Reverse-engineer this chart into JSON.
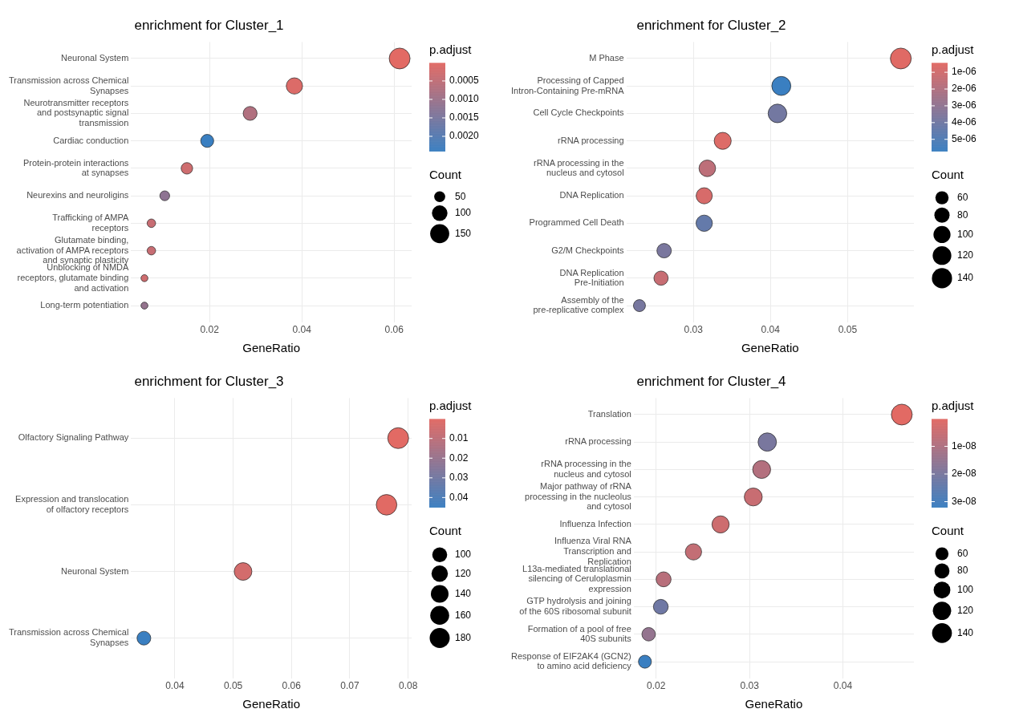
{
  "chart_data": [
    {
      "type": "bubble",
      "orientation": "horizontal",
      "title": "enrichment for Cluster_1",
      "xlabel": "GeneRatio",
      "grid": true,
      "xlim": [
        0.003,
        0.0638
      ],
      "xticks": [
        0.02,
        0.04,
        0.06
      ],
      "categories": [
        "Neuronal System",
        "Transmission across Chemical Synapses",
        "Neurotransmitter receptors and postsynaptic signal transmission",
        "Cardiac conduction",
        "Protein-protein interactions at synapses",
        "Neurexins and neuroligins",
        "Trafficking of AMPA receptors",
        "Glutamate binding, activation of AMPA receptors and synaptic plasticity",
        "Unblocking of NMDA receptors, glutamate binding and activation",
        "Long-term potentiation"
      ],
      "values": [
        0.0612,
        0.0384,
        0.0288,
        0.0195,
        0.0151,
        0.0103,
        0.0074,
        0.0074,
        0.0059,
        0.0059
      ],
      "sizes": [
        180,
        110,
        80,
        70,
        55,
        40,
        30,
        30,
        20,
        20
      ],
      "cvalues": [
        1e-05,
        0.0001,
        0.0007,
        0.0024,
        0.0003,
        0.0012,
        0.0004,
        0.0004,
        0.0003,
        0.0011
      ],
      "clabel": "p.adjust",
      "clim": [
        1e-05,
        0.0024
      ],
      "cticks": [
        0.0005,
        {
          "value": 0.001,
          "label": "0.0010"
        },
        0.0015,
        {
          "value": 0.002,
          "label": "0.0020"
        }
      ],
      "legend_title": "Count",
      "size_legend": [
        50,
        100,
        150
      ]
    },
    {
      "type": "bubble",
      "orientation": "horizontal",
      "title": "enrichment for Cluster_2",
      "xlabel": "GeneRatio",
      "grid": true,
      "xlim": [
        0.0213,
        0.0586
      ],
      "xticks": [
        0.03,
        0.04,
        0.05
      ],
      "categories": [
        "M Phase",
        "Processing of Capped Intron-Containing Pre-mRNA",
        "Cell Cycle Checkpoints",
        "rRNA processing",
        "rRNA processing in the nucleus and cytosol",
        "DNA Replication",
        "Programmed Cell Death",
        "G2/M Checkpoints",
        "DNA Replication Pre-Initiation",
        "Assembly of the pre-replicative complex"
      ],
      "values": [
        0.0569,
        0.0414,
        0.0409,
        0.0338,
        0.0318,
        0.0314,
        0.0314,
        0.0262,
        0.0258,
        0.023
      ],
      "sizes": [
        150,
        125,
        120,
        100,
        95,
        90,
        92,
        72,
        70,
        50
      ],
      "cvalues": [
        5e-07,
        5.7e-06,
        3.9e-06,
        6e-07,
        1.6e-06,
        8e-07,
        4.4e-06,
        3.7e-06,
        1.3e-06,
        3.8e-06
      ],
      "clabel": "p.adjust",
      "clim": [
        4.4e-07,
        5.7e-06
      ],
      "cticks": [
        {
          "value": 1e-06,
          "label": "1e-06"
        },
        {
          "value": 2e-06,
          "label": "2e-06"
        },
        {
          "value": 3e-06,
          "label": "3e-06"
        },
        {
          "value": 4e-06,
          "label": "4e-06"
        },
        {
          "value": 5e-06,
          "label": "5e-06"
        }
      ],
      "legend_title": "Count",
      "size_legend": [
        60,
        80,
        100,
        120,
        140
      ]
    },
    {
      "type": "bubble",
      "orientation": "horizontal",
      "title": "enrichment for Cluster_3",
      "xlabel": "GeneRatio",
      "grid": true,
      "xlim": [
        0.0325,
        0.0806
      ],
      "xticks": [
        0.04,
        0.05,
        0.06,
        0.07,
        0.08
      ],
      "categories": [
        "Olfactory Signaling Pathway",
        "Expression and translocation of olfactory receptors",
        "Neuronal System",
        "Transmission across Chemical Synapses"
      ],
      "values": [
        0.0783,
        0.0763,
        0.0517,
        0.0347
      ],
      "sizes": [
        195,
        190,
        140,
        85
      ],
      "cvalues": [
        0.0001,
        0.0003,
        0.004,
        0.0449
      ],
      "clabel": "p.adjust",
      "clim": [
        0.0001,
        0.0449
      ],
      "cticks": [
        0.01,
        0.02,
        0.03,
        0.04
      ],
      "legend_title": "Count",
      "size_legend": [
        100,
        120,
        140,
        160,
        180
      ]
    },
    {
      "type": "bubble",
      "orientation": "horizontal",
      "title": "enrichment for Cluster_4",
      "xlabel": "GeneRatio",
      "grid": true,
      "xlim": [
        0.0176,
        0.0476
      ],
      "xticks": [
        0.02,
        0.03,
        0.04
      ],
      "categories": [
        "Translation",
        "rRNA processing",
        "rRNA processing in the nucleus and cytosol",
        "Major pathway of rRNA processing in the nucleolus and cytosol",
        "Influenza Infection",
        "Influenza Viral RNA Transcription and Replication",
        "L13a-mediated translational silencing of Ceruloplasmin expression",
        "GTP hydrolysis and joining of the 60S ribosomal subunit",
        "Formation of a pool of free 40S subunits",
        "Response of EIF2AK4 (GCN2) to amino acid deficiency"
      ],
      "values": [
        0.0463,
        0.0319,
        0.0313,
        0.0304,
        0.0269,
        0.024,
        0.0208,
        0.0205,
        0.0192,
        0.0188
      ],
      "sizes": [
        155,
        120,
        115,
        115,
        105,
        95,
        80,
        78,
        65,
        60
      ],
      "cvalues": [
        1e-10,
        2e-08,
        9e-09,
        5e-09,
        4e-09,
        6e-09,
        8e-09,
        2.2e-08,
        1.5e-08,
        3.2e-08
      ],
      "clabel": "p.adjust",
      "clim": [
        1e-10,
        3.2e-08
      ],
      "cticks": [
        {
          "value": 1e-08,
          "label": "1e-08"
        },
        {
          "value": 2e-08,
          "label": "2e-08"
        },
        {
          "value": 3e-08,
          "label": "3e-08"
        }
      ],
      "legend_title": "Count",
      "size_legend": [
        60,
        80,
        100,
        120,
        140
      ]
    }
  ]
}
